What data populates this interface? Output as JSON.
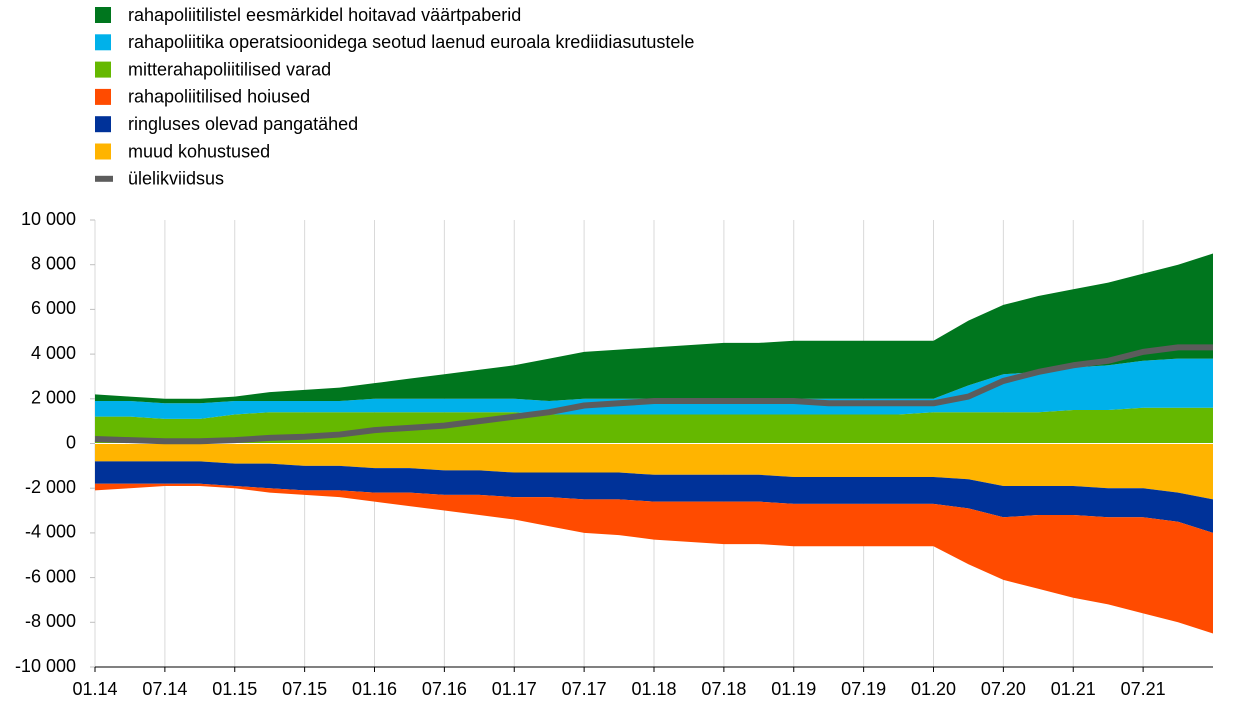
{
  "chart_data": {
    "type": "stacked_area_line",
    "categories": [
      "01.14",
      null,
      "07.14",
      null,
      "01.15",
      null,
      "07.15",
      null,
      "01.16",
      null,
      "07.16",
      null,
      "01.17",
      null,
      "07.17",
      null,
      "01.18",
      null,
      "07.18",
      null,
      "01.19",
      null,
      "07.19",
      null,
      "01.20",
      null,
      "07.20",
      null,
      "01.21",
      null,
      "07.21",
      null,
      null
    ],
    "series": [
      {
        "name": "rahapoliitilistel eesmärkidel hoitavad väärtpaberid",
        "color": "#00761e",
        "type": "area",
        "values": [
          300,
          200,
          200,
          200,
          200,
          400,
          500,
          600,
          700,
          900,
          1100,
          1300,
          1500,
          1900,
          2100,
          2200,
          2300,
          2400,
          2500,
          2500,
          2600,
          2600,
          2600,
          2600,
          2600,
          2900,
          3100,
          3400,
          3500,
          3700,
          3900,
          4200,
          4700
        ]
      },
      {
        "name": "rahapoliitika operatsioonidega seotud laenud euroala krediidiasutustele",
        "color": "#00b1ea",
        "type": "area",
        "values": [
          700,
          700,
          700,
          700,
          600,
          500,
          500,
          500,
          600,
          600,
          600,
          600,
          600,
          600,
          700,
          700,
          700,
          700,
          700,
          700,
          700,
          700,
          700,
          700,
          600,
          1200,
          1700,
          1800,
          1900,
          2000,
          2100,
          2200,
          2200
        ]
      },
      {
        "name": "mitterahapoliitilised varad",
        "color": "#65b800",
        "type": "area",
        "values": [
          1200,
          1200,
          1100,
          1100,
          1300,
          1400,
          1400,
          1400,
          1400,
          1400,
          1400,
          1400,
          1400,
          1300,
          1300,
          1300,
          1300,
          1300,
          1300,
          1300,
          1300,
          1300,
          1300,
          1300,
          1400,
          1400,
          1400,
          1400,
          1500,
          1500,
          1600,
          1600,
          1600
        ]
      },
      {
        "name": "rahapoliitilised hoiused",
        "color": "#ff4b00",
        "type": "area",
        "values": [
          -300,
          -200,
          -100,
          -100,
          -100,
          -200,
          -200,
          -300,
          -400,
          -600,
          -700,
          -900,
          -1000,
          -1300,
          -1500,
          -1600,
          -1700,
          -1800,
          -1900,
          -1900,
          -1900,
          -1900,
          -1900,
          -1900,
          -1900,
          -2500,
          -2800,
          -3300,
          -3700,
          -3900,
          -4300,
          -4500,
          -4500
        ]
      },
      {
        "name": "ringluses olevad pangatähed",
        "color": "#003299",
        "type": "area",
        "values": [
          -1000,
          -1000,
          -1000,
          -1000,
          -1000,
          -1100,
          -1100,
          -1100,
          -1100,
          -1100,
          -1100,
          -1100,
          -1100,
          -1100,
          -1200,
          -1200,
          -1200,
          -1200,
          -1200,
          -1200,
          -1200,
          -1200,
          -1200,
          -1200,
          -1200,
          -1300,
          -1400,
          -1300,
          -1300,
          -1300,
          -1300,
          -1300,
          -1500
        ]
      },
      {
        "name": "muud kohustused",
        "color": "#ffb400",
        "type": "area",
        "values": [
          -800,
          -800,
          -800,
          -800,
          -900,
          -900,
          -1000,
          -1000,
          -1100,
          -1100,
          -1200,
          -1200,
          -1300,
          -1300,
          -1300,
          -1300,
          -1400,
          -1400,
          -1400,
          -1400,
          -1500,
          -1500,
          -1500,
          -1500,
          -1500,
          -1600,
          -1900,
          -1900,
          -1900,
          -2000,
          -2000,
          -2200,
          -2500
        ]
      },
      {
        "name": "ülelikviidsus",
        "color": "#5c5c5c",
        "type": "line",
        "values": [
          200,
          150,
          100,
          100,
          150,
          250,
          300,
          400,
          600,
          700,
          800,
          1000,
          1200,
          1400,
          1700,
          1800,
          1900,
          1900,
          1900,
          1900,
          1900,
          1800,
          1800,
          1800,
          1800,
          2100,
          2800,
          3200,
          3500,
          3700,
          4100,
          4300,
          4300
        ]
      }
    ],
    "ylim": [
      -10000,
      10000
    ],
    "yticks": [
      {
        "value": -10000,
        "label": "-10 000"
      },
      {
        "value": -8000,
        "label": "-8 000"
      },
      {
        "value": -6000,
        "label": "-6 000"
      },
      {
        "value": -4000,
        "label": "-4 000"
      },
      {
        "value": -2000,
        "label": "-2 000"
      },
      0,
      {
        "value": 2000,
        "label": "2 000"
      },
      {
        "value": 4000,
        "label": "4 000"
      },
      {
        "value": 6000,
        "label": "6 000"
      },
      {
        "value": 8000,
        "label": "8 000"
      },
      {
        "value": 10000,
        "label": "10 000"
      }
    ],
    "grid": "x"
  }
}
